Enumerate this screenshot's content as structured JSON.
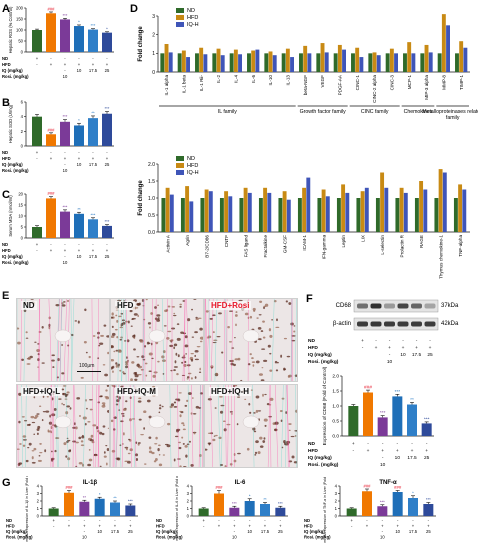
{
  "colors": {
    "nd": "#2f6a2a",
    "hfd": "#f07800",
    "rosi": "#7b3a98",
    "iql": "#1f6fb8",
    "iqm": "#2f7fc8",
    "iqh": "#2e4a9a",
    "d_nd": "#2f6a2a",
    "d_hfd": "#c88a14",
    "d_iqh": "#3f55b8"
  },
  "panels": {
    "A": "A",
    "B": "B",
    "C": "C",
    "D": "D",
    "E": "E",
    "F": "F",
    "G": "G"
  },
  "row_labels": {
    "nd": "ND",
    "hfd": "HFD",
    "iq": "IQ (mg/kg)",
    "rosi": "Rosi. (mg/kg)"
  },
  "design": {
    "nd": [
      "+",
      "-",
      "-",
      "-",
      "-",
      "-"
    ],
    "hfd": [
      "-",
      "+",
      "+",
      "+",
      "+",
      "+"
    ],
    "iq": [
      "",
      "",
      "-",
      "10",
      "17.5",
      "25"
    ],
    "rosi": [
      "",
      "",
      "10",
      "",
      "",
      ""
    ]
  },
  "chart_data": [
    {
      "id": "A",
      "type": "bar",
      "ylabel": "Hepatic ROS (% Control)",
      "ylim": [
        0,
        200
      ],
      "ticks": [
        "0",
        "50",
        "100",
        "150",
        "200"
      ],
      "values": [
        100,
        176,
        148,
        118,
        102,
        88
      ],
      "errors": [
        4,
        6,
        5,
        5,
        4,
        4
      ],
      "sig": [
        "",
        "###",
        "***",
        "*",
        "***",
        "*"
      ]
    },
    {
      "id": "B",
      "type": "bar",
      "ylabel": "Hepatic SOD (U/mg)",
      "ylim": [
        0,
        6
      ],
      "ticks": [
        "0",
        "2",
        "4",
        "6"
      ],
      "values": [
        4.0,
        1.6,
        3.3,
        2.8,
        3.8,
        4.4
      ],
      "errors": [
        0.3,
        0.2,
        0.3,
        0.3,
        0.3,
        0.3
      ],
      "sig": [
        "",
        "###",
        "***",
        "*",
        "**",
        "***"
      ]
    },
    {
      "id": "C",
      "type": "bar",
      "ylabel": "Serum MDA (nmol/ml)",
      "ylim": [
        0,
        20
      ],
      "ticks": [
        "0",
        "5",
        "10",
        "15",
        "20"
      ],
      "values": [
        5,
        18,
        12,
        11,
        8.5,
        5.5
      ],
      "errors": [
        0.6,
        0.8,
        0.8,
        0.7,
        0.7,
        0.6
      ],
      "sig": [
        "",
        "###",
        "***",
        "**",
        "***",
        "***"
      ]
    },
    {
      "id": "D1",
      "type": "bar",
      "ylabel": "Fold change",
      "ylim": [
        0,
        3
      ],
      "ticks": [
        "0",
        "1",
        "2",
        "3"
      ],
      "legend": [
        "ND",
        "HFD",
        "IQ-H"
      ],
      "categories": [
        "IL-1 alpha",
        "IL-1 beta",
        "IL-1 Rii-",
        "IL-2",
        "IL-4",
        "IL-6",
        "IL-10",
        "IL-13",
        "beta-NGF",
        "VEGF",
        "PDGF-AA",
        "CINC-1",
        "CINC-2 alpha",
        "CINC-3",
        "MCP-1",
        "MIP-3 alpha",
        "MMP-8",
        "TIMP-1"
      ],
      "series": [
        {
          "name": "ND",
          "values": [
            1,
            1,
            1,
            1,
            1,
            1,
            1,
            1,
            1,
            1,
            1,
            1,
            1,
            1,
            1,
            1,
            1,
            1
          ]
        },
        {
          "name": "HFD",
          "values": [
            1.5,
            1.15,
            1.3,
            1.25,
            1.2,
            1.15,
            1.1,
            1.25,
            1.4,
            1.55,
            1.45,
            1.3,
            1.05,
            1.25,
            1.6,
            1.45,
            3.1,
            1.65
          ]
        },
        {
          "name": "IQ-H",
          "values": [
            1.05,
            0.8,
            0.95,
            0.9,
            0.95,
            1.2,
            0.9,
            0.8,
            1.0,
            1.05,
            1.2,
            0.8,
            0.9,
            1.0,
            1.0,
            1.05,
            2.5,
            1.3
          ]
        }
      ],
      "groups": [
        {
          "label": "IL family",
          "from": 0,
          "to": 7
        },
        {
          "label": "Growth factor family",
          "from": 8,
          "to": 10
        },
        {
          "label": "CINC family",
          "from": 11,
          "to": 13
        },
        {
          "label": "Chemokines",
          "from": 14,
          "to": 15
        },
        {
          "label": "Metalloproteinases related family",
          "from": 16,
          "to": 17
        }
      ]
    },
    {
      "id": "D2",
      "type": "bar",
      "ylabel": "Fold change",
      "ylim": [
        0,
        2
      ],
      "ticks": [
        "0.0",
        "0.5",
        "1.0",
        "1.5",
        "2.0"
      ],
      "legend": [
        "ND",
        "HFD",
        "IQ-H"
      ],
      "categories": [
        "Activin A",
        "Agrin",
        "B7-2/CD86",
        "CNTF",
        "FAS ligand",
        "Fractalkine",
        "GM-CSF",
        "ICAM-1",
        "IFN-gamma",
        "Leptin",
        "LIX",
        "L-selectin",
        "Prolactin R",
        "RAGE",
        "Thymus chemokine-1",
        "TNF-alpha"
      ],
      "series": [
        {
          "name": "ND",
          "values": [
            1,
            1,
            1,
            1,
            1,
            1,
            1,
            1,
            1,
            1,
            1,
            1,
            1,
            1,
            1,
            1
          ]
        },
        {
          "name": "HFD",
          "values": [
            1.3,
            1.35,
            1.25,
            1.2,
            1.3,
            1.3,
            1.2,
            1.3,
            1.25,
            1.4,
            1.2,
            1.75,
            1.3,
            1.5,
            1.85,
            1.4
          ]
        },
        {
          "name": "IQ-H",
          "values": [
            1.1,
            0.9,
            1.2,
            1.05,
            1.15,
            1.15,
            0.95,
            1.6,
            1.05,
            1.15,
            1.3,
            1.3,
            1.15,
            1.25,
            1.75,
            1.25
          ]
        }
      ]
    },
    {
      "id": "F",
      "type": "bar",
      "ylabel": "Expression of CD68 (Fold of Control)",
      "ylim": [
        0,
        2.0
      ],
      "ticks": [
        "0.0",
        "0.5",
        "1.0",
        "1.5",
        "2.0"
      ],
      "values": [
        1.0,
        1.45,
        0.62,
        1.32,
        1.05,
        0.42
      ],
      "errors": [
        0.05,
        0.08,
        0.06,
        0.07,
        0.07,
        0.05
      ],
      "sig": [
        "",
        "###",
        "***",
        "***",
        "**",
        "***"
      ]
    },
    {
      "id": "G1",
      "type": "bar",
      "title": "IL-1β",
      "ylabel": "mRNA expression of IL-1β in Liver (Fold of Control)",
      "ylim": [
        0,
        4
      ],
      "ticks": [
        "0",
        "1",
        "2",
        "3",
        "4"
      ],
      "values": [
        1.0,
        3.1,
        1.9,
        2.3,
        1.8,
        1.4
      ],
      "errors": [
        0.1,
        0.3,
        0.2,
        0.2,
        0.2,
        0.2
      ],
      "sig": [
        "",
        "###",
        "**",
        "*",
        "**",
        "***"
      ]
    },
    {
      "id": "G2",
      "type": "bar",
      "title": "IL-6",
      "ylabel": "mRNA expression of IL-6 in Liver (Fold of Control)",
      "ylim": [
        0,
        4
      ],
      "ticks": [
        "0",
        "1",
        "2",
        "3",
        "4"
      ],
      "values": [
        1.0,
        3.0,
        1.1,
        2.0,
        1.6,
        1.1
      ],
      "errors": [
        0.1,
        0.4,
        0.2,
        0.3,
        0.2,
        0.2
      ],
      "sig": [
        "",
        "###",
        "***",
        "*",
        "**",
        "***"
      ]
    },
    {
      "id": "G3",
      "type": "bar",
      "title": "TNF-α",
      "ylabel": "mRNA expression of TNF-α in Liver (Fold of Control)",
      "ylim": [
        0,
        4
      ],
      "ticks": [
        "0",
        "1",
        "2",
        "3",
        "4"
      ],
      "values": [
        1.0,
        3.3,
        1.3,
        3.2,
        2.4,
        1.6
      ],
      "errors": [
        0.1,
        0.3,
        0.2,
        0.2,
        0.3,
        0.2
      ],
      "sig": [
        "",
        "###",
        "***",
        "###",
        "*",
        "***"
      ]
    }
  ],
  "blot": {
    "labels": [
      "CD68",
      "β-actin"
    ],
    "sizes": [
      "37kDa",
      "42kDa"
    ],
    "cd68_intensity": [
      0.55,
      0.85,
      0.35,
      0.75,
      0.6,
      0.3
    ],
    "actin_intensity": [
      0.8,
      0.82,
      0.8,
      0.8,
      0.8,
      0.8
    ]
  },
  "histology": {
    "labels": [
      "ND",
      "HFD",
      "HFD+Rosi",
      "HFD+IQ-L",
      "HFD+IQ-M",
      "HFD+IQ-H"
    ],
    "scale": "100μm"
  }
}
